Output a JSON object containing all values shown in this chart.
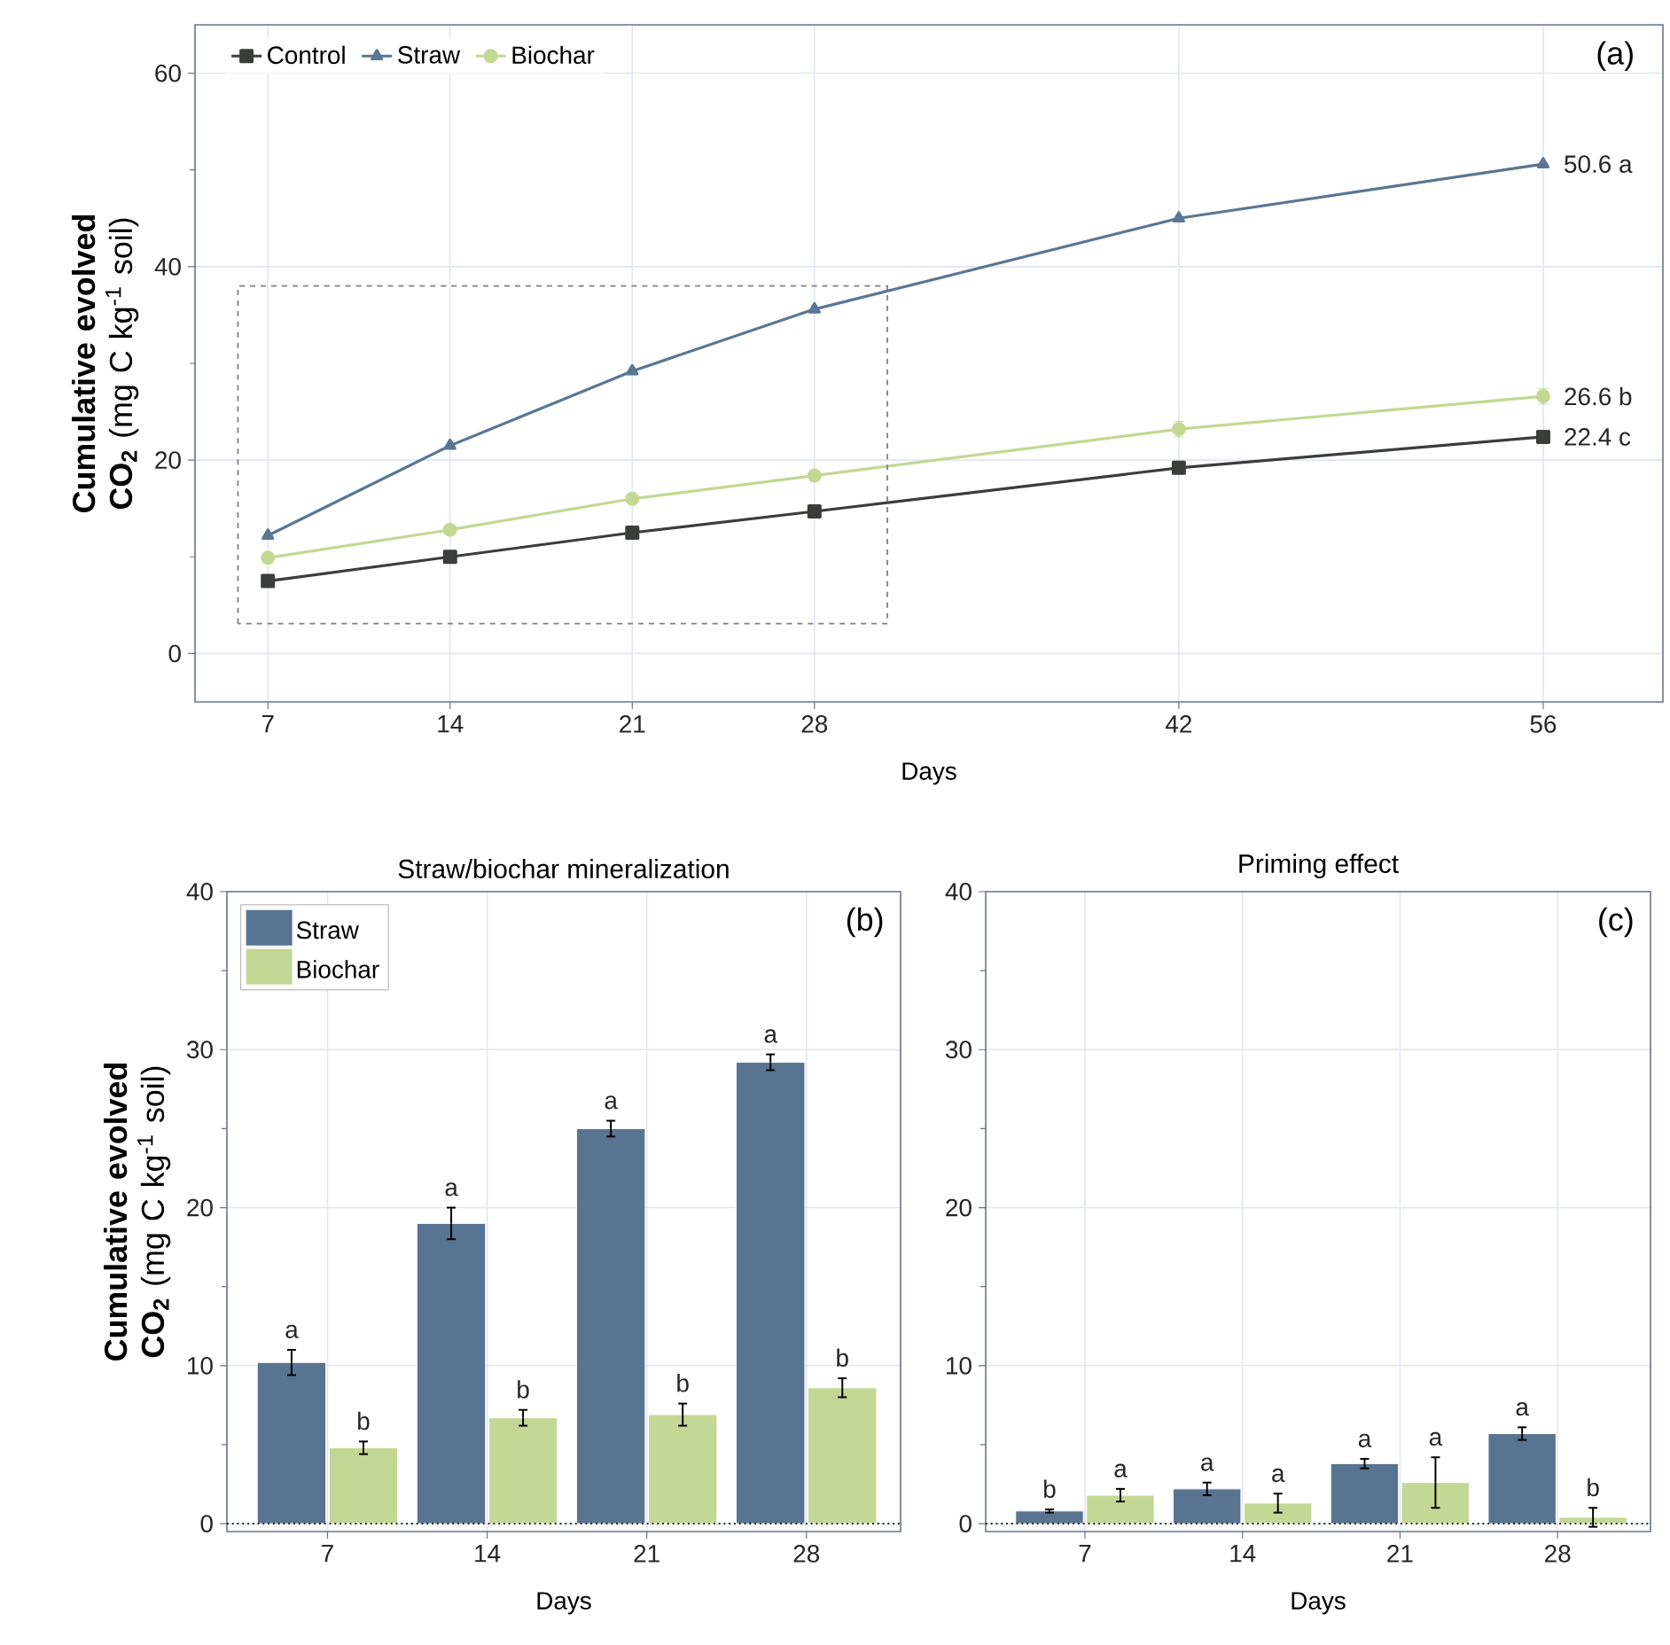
{
  "chart_data": [
    {
      "type": "line",
      "x": [
        7,
        14,
        21,
        28,
        42,
        56
      ],
      "xlabel": "Days",
      "ylabel": "**Cumulative evolved CO$_{2}$** (mg C kg$^{-1}$ soil)",
      "series": [
        {
          "name": "Control",
          "color": "#3a3d3a",
          "marker": "square",
          "values": [
            7.5,
            10.0,
            12.5,
            14.7,
            19.2,
            22.4
          ],
          "value_labels": [
            null,
            null,
            null,
            null,
            null,
            "22.4 c"
          ]
        },
        {
          "name": "Straw",
          "color": "#5a7693",
          "marker": "triangle",
          "values": [
            12.2,
            21.5,
            29.2,
            35.6,
            45.0,
            50.6
          ],
          "value_labels": [
            null,
            null,
            null,
            null,
            null,
            "50.6 a"
          ]
        },
        {
          "name": "Biochar",
          "color": "#c3d892",
          "marker": "circle",
          "values": [
            9.9,
            12.8,
            16.0,
            18.4,
            23.2,
            26.6
          ],
          "errors": [
            null,
            null,
            null,
            null,
            0.8,
            0.8
          ],
          "value_labels": [
            null,
            null,
            null,
            null,
            null,
            "26.6 b"
          ]
        }
      ],
      "xlim": [
        4.2,
        60.6
      ],
      "ylim": [
        -5,
        65
      ],
      "xticks": [
        7,
        14,
        21,
        28,
        42,
        56
      ],
      "yticks": [
        0,
        {
          "value": 10,
          "label": null
        },
        20,
        {
          "value": 30,
          "label": null
        },
        40,
        {
          "value": 50,
          "label": null
        },
        60
      ],
      "grid": true,
      "legend": "top left",
      "annotations": [
        "(a)"
      ]
    },
    {
      "type": "bar",
      "title": "Straw/biochar mineralization",
      "categories": [
        "7",
        "14",
        "21",
        "28"
      ],
      "xlabel": "Days",
      "ylabel": "**Cumulative evolved CO$_{2}$** (mg C kg$^{-1}$ soil)",
      "series": [
        {
          "name": "Straw",
          "color": "#587490",
          "values": [
            10.2,
            19.0,
            25.0,
            29.2
          ],
          "errors": [
            0.8,
            1.0,
            0.5,
            0.5
          ],
          "value_labels": [
            "a",
            "a",
            "a",
            "a"
          ]
        },
        {
          "name": "Biochar",
          "color": "#c4d895",
          "values": [
            4.8,
            6.7,
            6.9,
            8.6
          ],
          "errors": [
            0.4,
            0.5,
            0.7,
            0.6
          ],
          "value_labels": [
            "b",
            "b",
            "b",
            "b"
          ]
        }
      ],
      "ylim": [
        -0.5,
        40
      ],
      "yticks": [
        0,
        {
          "value": 5,
          "label": null
        },
        10,
        {
          "value": 15,
          "label": null
        },
        20,
        {
          "value": 25,
          "label": null
        },
        30,
        {
          "value": 35,
          "label": null
        },
        40
      ],
      "grid": true,
      "legend": "top left",
      "annotations": [
        "(b)"
      ],
      "ref_lines": [
        {
          "axis": "y",
          "value": 0,
          "line_style": "dotted"
        }
      ]
    },
    {
      "type": "bar",
      "title": "Priming effect",
      "categories": [
        "7",
        "14",
        "21",
        "28"
      ],
      "xlabel": "Days",
      "series": [
        {
          "color": "#587490",
          "values": [
            0.8,
            2.2,
            3.8,
            5.7
          ],
          "errors": [
            0.1,
            0.4,
            0.3,
            0.4
          ],
          "value_labels": [
            "b",
            "a",
            "a",
            "a"
          ]
        },
        {
          "color": "#c4d895",
          "values": [
            1.8,
            1.3,
            2.6,
            0.4
          ],
          "errors": [
            0.4,
            0.6,
            1.6,
            0.6
          ],
          "value_labels": [
            "a",
            "a",
            "a",
            "b"
          ]
        }
      ],
      "ylim": [
        -0.5,
        40
      ],
      "yticks": [
        0,
        {
          "value": 5,
          "label": null
        },
        10,
        {
          "value": 15,
          "label": null
        },
        20,
        {
          "value": 25,
          "label": null
        },
        30,
        {
          "value": 35,
          "label": null
        },
        40
      ],
      "grid": true,
      "annotations": [
        "(c)"
      ],
      "ref_lines": [
        {
          "axis": "y",
          "value": 0,
          "line_style": "dotted"
        }
      ]
    }
  ]
}
